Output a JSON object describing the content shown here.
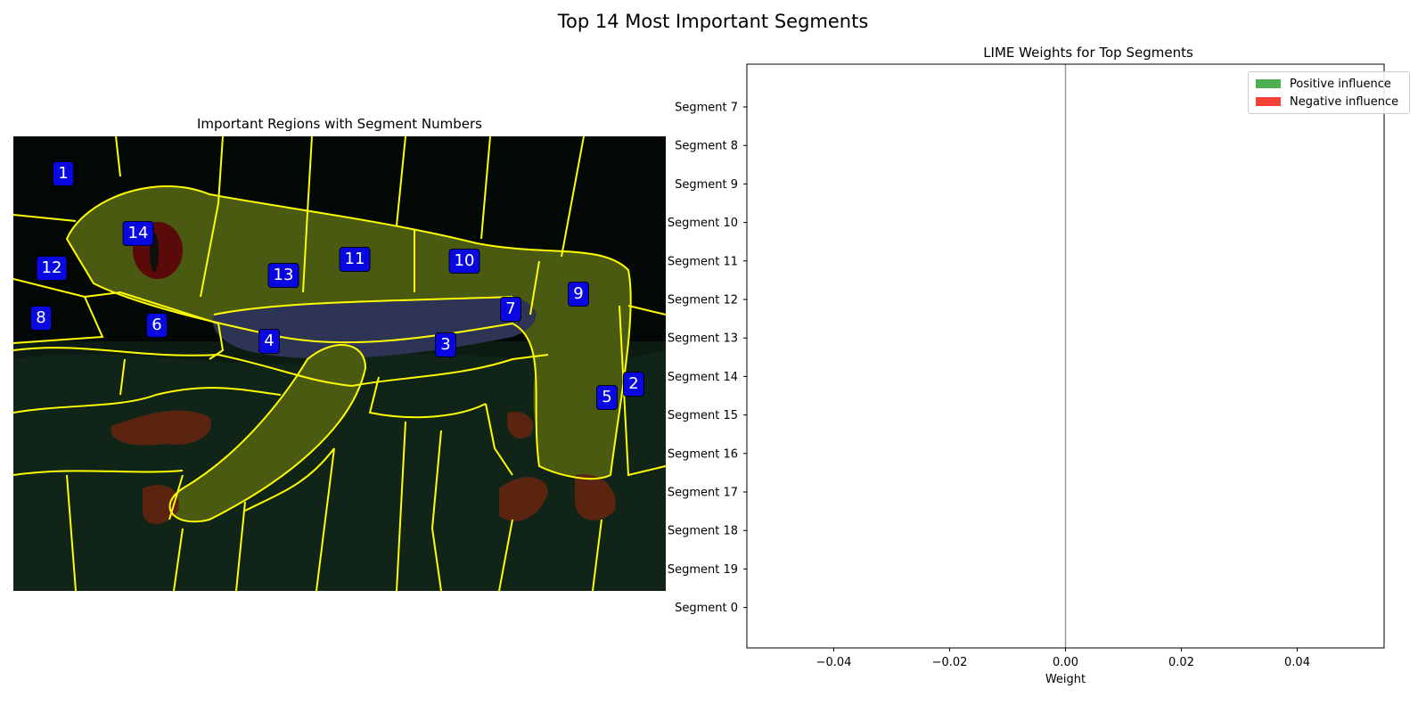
{
  "figure": {
    "suptitle": "Top 14 Most Important Segments"
  },
  "image_panel": {
    "title": "Important Regions with Segment Numbers",
    "label_color": "#0a08e0",
    "boundary_color": "#ffff00",
    "segment_labels": [
      {
        "id": "1",
        "text": "1"
      },
      {
        "id": "2",
        "text": "2"
      },
      {
        "id": "3",
        "text": "3"
      },
      {
        "id": "4",
        "text": "4"
      },
      {
        "id": "5",
        "text": "5"
      },
      {
        "id": "6",
        "text": "6"
      },
      {
        "id": "7",
        "text": "7"
      },
      {
        "id": "8",
        "text": "8"
      },
      {
        "id": "9",
        "text": "9"
      },
      {
        "id": "10",
        "text": "10"
      },
      {
        "id": "11",
        "text": "11"
      },
      {
        "id": "12",
        "text": "12"
      },
      {
        "id": "13",
        "text": "13"
      },
      {
        "id": "14",
        "text": "14"
      }
    ]
  },
  "chart_data": {
    "type": "bar",
    "orientation": "horizontal",
    "title": "LIME Weights for Top Segments",
    "xlabel": "Weight",
    "ylabel": "",
    "categories": [
      "Segment 7",
      "Segment 8",
      "Segment 9",
      "Segment 10",
      "Segment 11",
      "Segment 12",
      "Segment 13",
      "Segment 14",
      "Segment 15",
      "Segment 16",
      "Segment 17",
      "Segment 18",
      "Segment 19",
      "Segment 0"
    ],
    "values": [
      0,
      0,
      0,
      0,
      0,
      0,
      0,
      0,
      0,
      0,
      0,
      0,
      0,
      0
    ],
    "xlim": [
      -0.055,
      0.055
    ],
    "xticks": [
      -0.04,
      -0.02,
      0.0,
      0.02,
      0.04
    ],
    "xtick_labels": [
      "−0.04",
      "−0.02",
      "0.00",
      "0.02",
      "0.04"
    ],
    "zero_line": true,
    "legend": {
      "placement": "top-right",
      "entries": [
        {
          "label": "Positive influence",
          "color": "#4caf50"
        },
        {
          "label": "Negative influence",
          "color": "#f44336"
        }
      ]
    }
  }
}
